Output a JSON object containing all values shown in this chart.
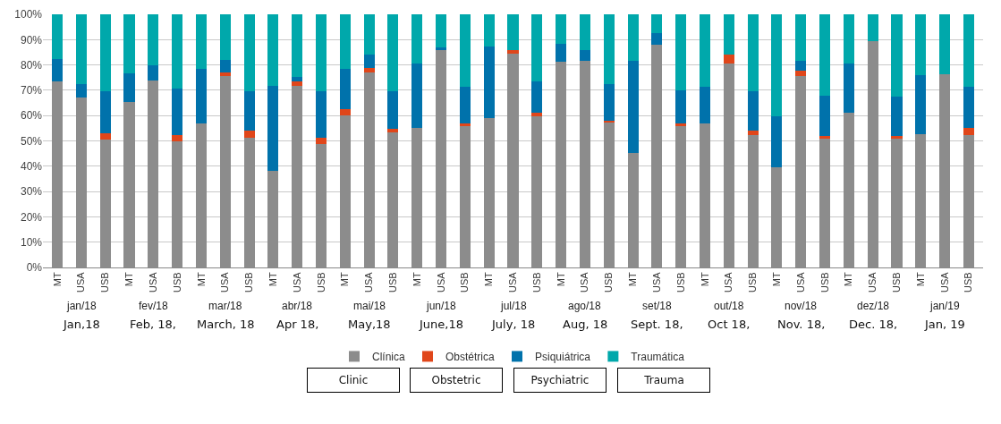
{
  "chart_data": {
    "type": "bar",
    "stacked": true,
    "categories": [
      "MT",
      "USA",
      "USB",
      "MT",
      "USA",
      "USB",
      "MT",
      "USA",
      "USB",
      "MT",
      "USA",
      "USB",
      "MT",
      "USA",
      "USB",
      "MT",
      "USA",
      "USB",
      "MT",
      "USA",
      "USB",
      "MT",
      "USA",
      "USB",
      "MT",
      "USA",
      "USB",
      "MT",
      "USA",
      "USB",
      "MT",
      "USA",
      "USB",
      "MT",
      "USA",
      "USB",
      "MT",
      "USA",
      "USB"
    ],
    "series": [
      {
        "name": "Clínica",
        "color": "#8c8c8c",
        "values": [
          73.5,
          67,
          50.6,
          65.5,
          73.9,
          49.9,
          56.8,
          75.7,
          51.4,
          38.2,
          71.8,
          48.8,
          60,
          77.1,
          53.5,
          55.2,
          86,
          55.7,
          59,
          84.6,
          59.7,
          81.2,
          81.8,
          57.1,
          45.1,
          88.1,
          55.8,
          56.8,
          80.7,
          52.4,
          39.6,
          75.6,
          50.9,
          61,
          89.5,
          50.9,
          52.6,
          76.3,
          52.4
        ]
      },
      {
        "name": "Obstétrica",
        "color": "#e0461a",
        "values": [
          0,
          0,
          2.5,
          0,
          0,
          2.5,
          0,
          1.5,
          2.5,
          0,
          1.7,
          2.6,
          2.6,
          1.8,
          1.4,
          0,
          0,
          1.1,
          0,
          1.4,
          1.3,
          0,
          0,
          1,
          0,
          0,
          1.2,
          0,
          3.4,
          1.5,
          0,
          2.3,
          1.1,
          0,
          0,
          1.1,
          0,
          0,
          2.8
        ]
      },
      {
        "name": "Psiquiátrica",
        "color": "#0072ab",
        "values": [
          8.8,
          5.4,
          16.5,
          11.3,
          5.8,
          18.2,
          21.5,
          4.7,
          15.7,
          33.6,
          1.6,
          18.2,
          16,
          5.2,
          14.7,
          25.3,
          0.9,
          14.5,
          28.4,
          0,
          12.5,
          7.3,
          3.9,
          14.3,
          36.4,
          4.4,
          13.1,
          14.6,
          0,
          15.7,
          20.1,
          3.6,
          15.8,
          19.5,
          0,
          15.4,
          23.4,
          0,
          16.1
        ]
      },
      {
        "name": "Traumática",
        "color": "#00a8ab",
        "values": [
          17.7,
          27.6,
          30.4,
          23.2,
          20.3,
          29.4,
          21.7,
          18.1,
          30.4,
          28.2,
          24.9,
          30.4,
          21.4,
          15.9,
          30.4,
          19.5,
          13.1,
          28.7,
          12.6,
          14,
          26.5,
          11.5,
          14.3,
          27.6,
          18.5,
          7.5,
          29.9,
          28.6,
          15.9,
          30.4,
          40.3,
          18.5,
          32.2,
          19.5,
          10.5,
          32.6,
          24,
          23.7,
          28.7
        ]
      }
    ],
    "ylim": [
      0,
      100
    ],
    "yticks": [
      {
        "value": 0,
        "label": "0%"
      },
      {
        "value": 10,
        "label": "10%"
      },
      {
        "value": 20,
        "label": "20%"
      },
      {
        "value": 30,
        "label": "30%"
      },
      {
        "value": 40,
        "label": "40%"
      },
      {
        "value": 50,
        "label": "50%"
      },
      {
        "value": 60,
        "label": "60%"
      },
      {
        "value": 70,
        "label": "70%"
      },
      {
        "value": 80,
        "label": "80%"
      },
      {
        "value": 90,
        "label": "90%"
      },
      {
        "value": 100,
        "label": "100%"
      }
    ],
    "grid": "y",
    "legend": "bottom",
    "annotations": [
      "jan/18",
      "fev/18",
      "mar/18",
      "abr/18",
      "mai/18",
      "jun/18",
      "jul/18",
      "ago/18",
      "set/18",
      "out/18",
      "nov/18",
      "dez/18",
      "jan/19",
      "Jan,18",
      "Feb, 18,",
      "March, 18",
      "Apr 18,",
      "May,18",
      "June,18",
      "July, 18",
      "Aug, 18",
      "Sept. 18,",
      "Oct 18,",
      "Nov. 18,",
      "Dec. 18,",
      "Jan, 19",
      "Clinic",
      "Obstetric",
      "Psychiatric",
      "Trauma"
    ]
  }
}
